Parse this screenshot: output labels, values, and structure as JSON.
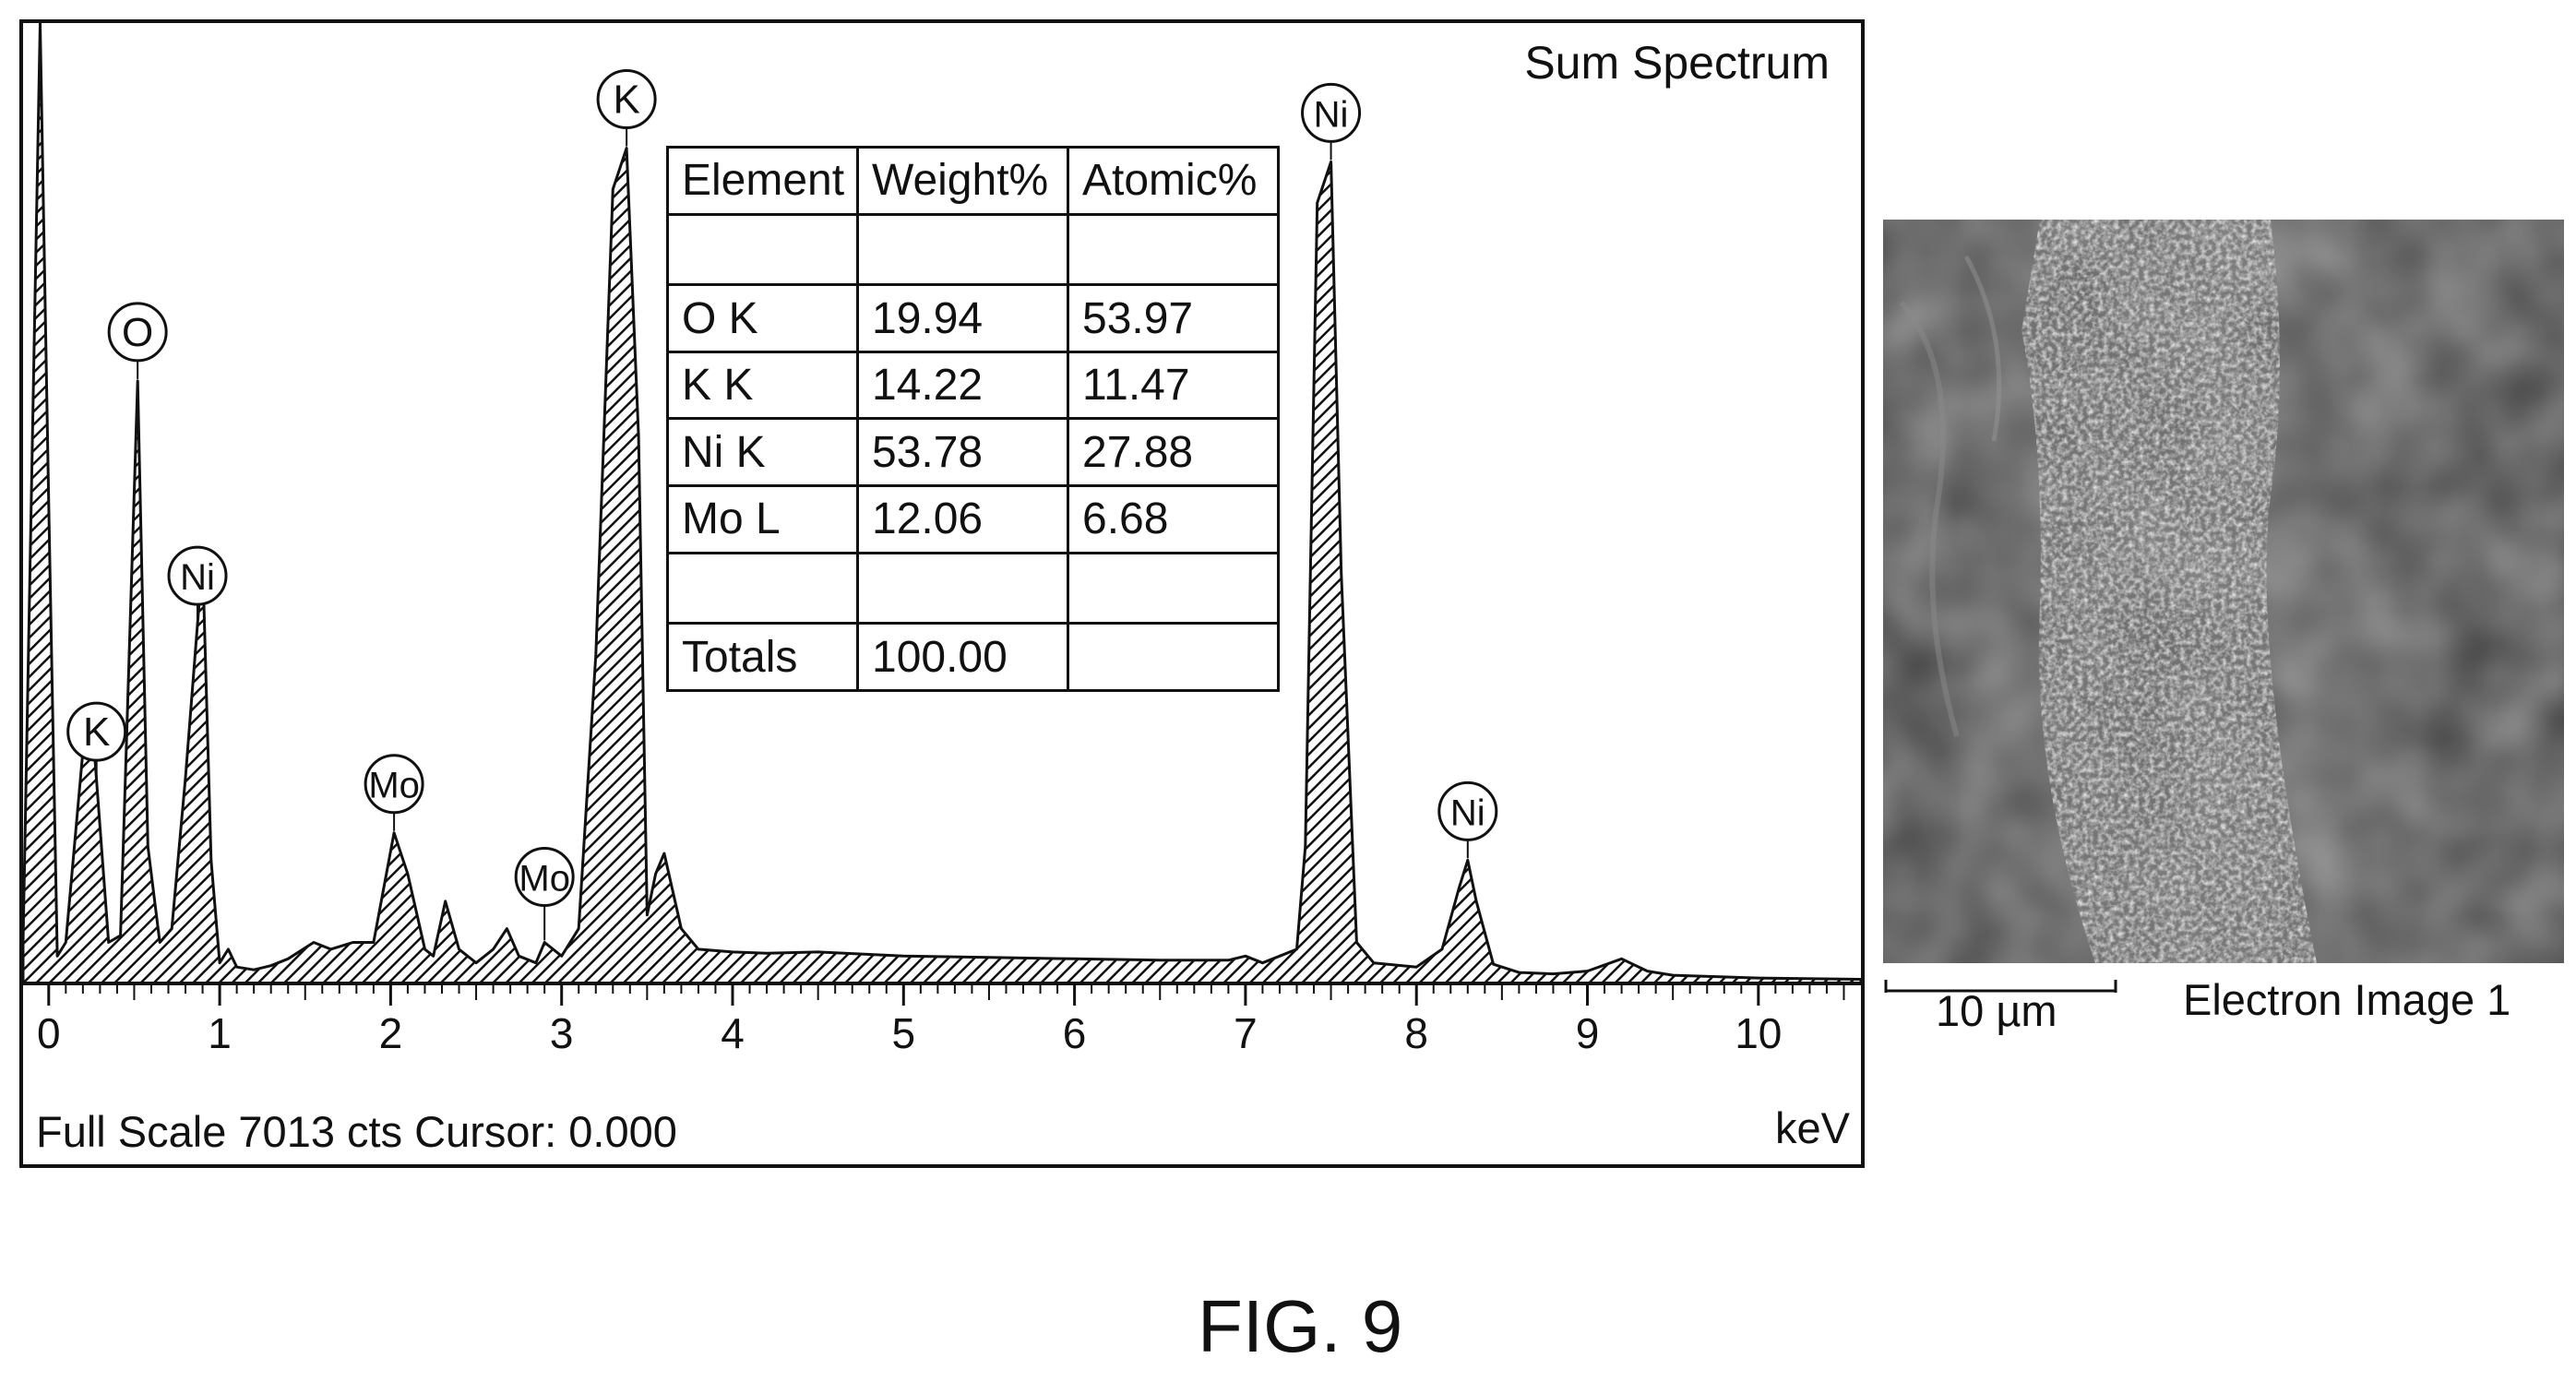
{
  "spectrum": {
    "title": "Sum Spectrum",
    "footer": "Full Scale 7013 cts Cursor: 0.000",
    "unit": "keV"
  },
  "chart_data": {
    "type": "area",
    "title": "Sum Spectrum",
    "xlabel": "keV",
    "ylabel": "",
    "xlim": [
      -0.15,
      10.6
    ],
    "ylim": [
      0,
      7013
    ],
    "x_ticks": [
      0,
      1,
      2,
      3,
      4,
      5,
      6,
      7,
      8,
      9,
      10
    ],
    "x_tick_labels": [
      "0",
      "1",
      "2",
      "3",
      "4",
      "5",
      "6",
      "7",
      "8",
      "9",
      "10"
    ],
    "grid": false,
    "fill": "hatched",
    "x": [
      -0.15,
      -0.05,
      0.0,
      0.05,
      0.1,
      0.15,
      0.2,
      0.27,
      0.35,
      0.42,
      0.52,
      0.58,
      0.65,
      0.72,
      0.8,
      0.9,
      0.95,
      1.0,
      1.05,
      1.1,
      1.2,
      1.3,
      1.4,
      1.55,
      1.65,
      1.78,
      1.9,
      2.02,
      2.1,
      2.2,
      2.25,
      2.32,
      2.4,
      2.5,
      2.6,
      2.68,
      2.75,
      2.85,
      2.9,
      3.0,
      3.1,
      3.2,
      3.3,
      3.38,
      3.45,
      3.5,
      3.55,
      3.6,
      3.7,
      3.8,
      4.0,
      4.2,
      4.5,
      5.0,
      5.5,
      6.0,
      6.5,
      6.9,
      7.0,
      7.1,
      7.2,
      7.3,
      7.35,
      7.42,
      7.5,
      7.56,
      7.65,
      7.75,
      8.0,
      8.15,
      8.25,
      8.3,
      8.35,
      8.45,
      8.6,
      8.8,
      9.0,
      9.2,
      9.35,
      9.5,
      10.0,
      10.6
    ],
    "y": [
      300,
      7013,
      3500,
      200,
      300,
      1000,
      1700,
      1650,
      300,
      350,
      4400,
      1000,
      300,
      400,
      1500,
      3100,
      900,
      150,
      250,
      120,
      100,
      130,
      180,
      300,
      250,
      300,
      300,
      1100,
      800,
      250,
      200,
      600,
      250,
      150,
      250,
      400,
      200,
      150,
      300,
      200,
      400,
      2400,
      5800,
      6100,
      4000,
      500,
      800,
      950,
      400,
      250,
      230,
      220,
      230,
      200,
      190,
      180,
      170,
      170,
      200,
      150,
      200,
      250,
      1000,
      5700,
      6000,
      3000,
      300,
      150,
      120,
      250,
      700,
      900,
      600,
      140,
      80,
      70,
      90,
      180,
      90,
      60,
      40,
      30
    ],
    "peak_labels": [
      {
        "label": "K",
        "x": 0.28
      },
      {
        "label": "O",
        "x": 0.52
      },
      {
        "label": "Ni",
        "x": 0.87
      },
      {
        "label": "Mo",
        "x": 2.02
      },
      {
        "label": "Mo",
        "x": 2.9
      },
      {
        "label": "K",
        "x": 3.38
      },
      {
        "label": "Ni",
        "x": 7.5
      },
      {
        "label": "Ni",
        "x": 8.3
      }
    ]
  },
  "table": {
    "headers": [
      "Element",
      "Weight%",
      "Atomic%"
    ],
    "rows": [
      {
        "element": "O K",
        "weight": "19.94",
        "atomic": "53.97"
      },
      {
        "element": "K K",
        "weight": "14.22",
        "atomic": "11.47"
      },
      {
        "element": "Ni K",
        "weight": "53.78",
        "atomic": "27.88"
      },
      {
        "element": "Mo L",
        "weight": "12.06",
        "atomic": "6.68"
      }
    ],
    "totals": {
      "label": "Totals",
      "weight": "100.00",
      "atomic": ""
    }
  },
  "image": {
    "scale_label": "10 µm",
    "caption": "Electron Image 1"
  },
  "figure": {
    "caption": "FIG. 9"
  }
}
